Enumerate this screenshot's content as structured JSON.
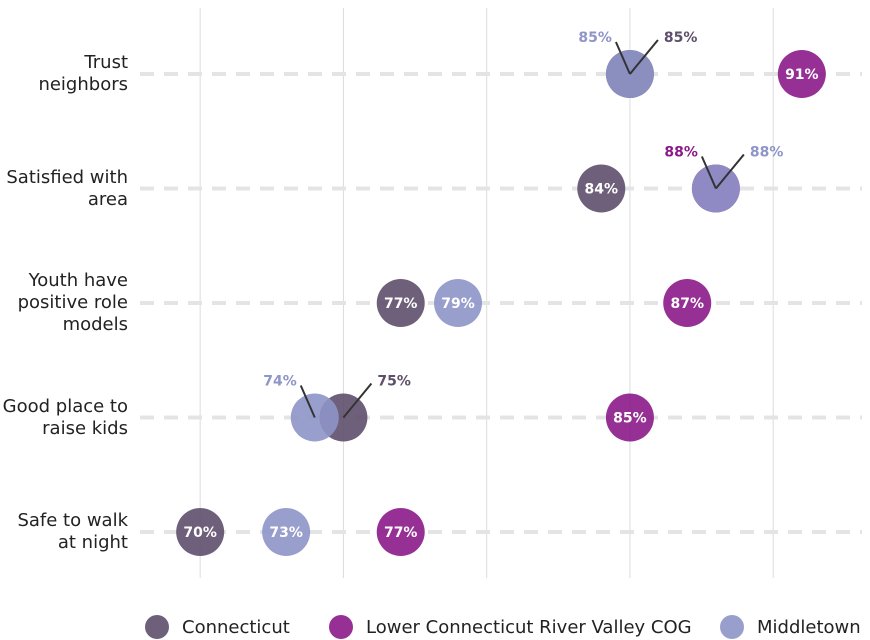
{
  "chart_data": {
    "type": "dot",
    "categories": [
      "Trust neighbors",
      "Satisfied with area",
      "Youth have positive role models",
      "Good place to raise kids",
      "Safe to walk at night"
    ],
    "series": [
      {
        "name": "Connecticut",
        "color": "#5e4f6b",
        "values": [
          85,
          84,
          77,
          75,
          70
        ],
        "value_labels": [
          "85%",
          "84%",
          "77%",
          "75%",
          "70%"
        ]
      },
      {
        "name": "Lower Connecticut River Valley COG",
        "color": "#8b1a89",
        "values": [
          91,
          88,
          87,
          85,
          77
        ],
        "value_labels": [
          "91%",
          "88%",
          "87%",
          "85%",
          "77%"
        ]
      },
      {
        "name": "Middletown",
        "color": "#8e95c8",
        "values": [
          85,
          88,
          79,
          74,
          73
        ],
        "value_labels": [
          "85%",
          "88%",
          "79%",
          "74%",
          "73%"
        ]
      }
    ],
    "xlim": [
      67.9,
      93.1
    ],
    "xticks": [
      70,
      75,
      80,
      85,
      90
    ],
    "grid": true,
    "legend": "bottom"
  }
}
